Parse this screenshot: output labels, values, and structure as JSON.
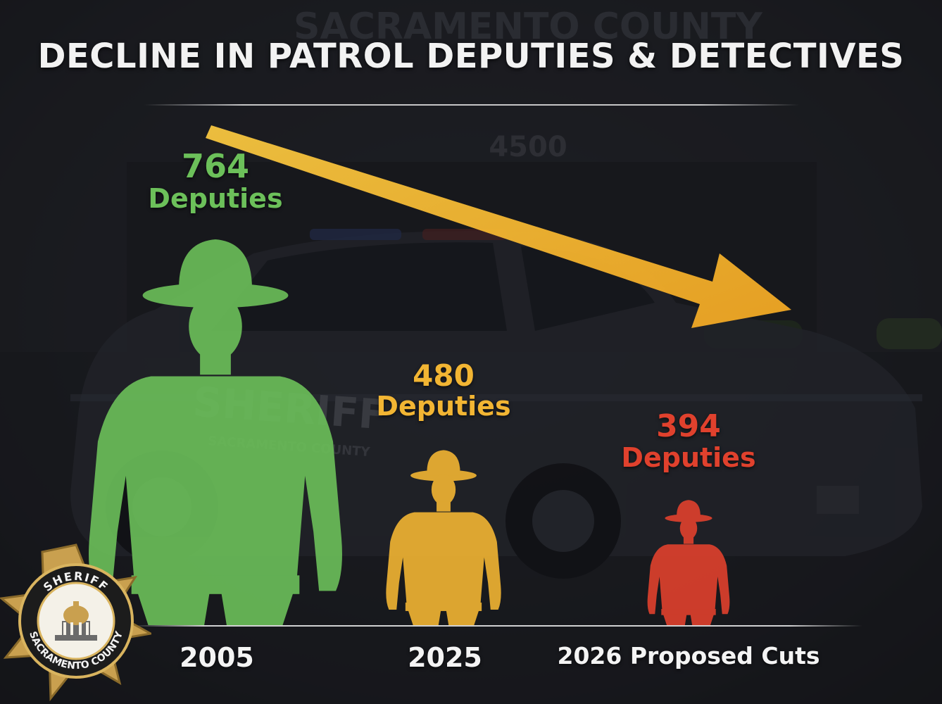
{
  "title": "DECLINE IN PATROL DEPUTIES & DETECTIVES",
  "chart_data": {
    "type": "bar",
    "title": "DECLINE IN PATROL DEPUTIES & DETECTIVES",
    "categories": [
      "2005",
      "2025",
      "2026 Proposed Cuts"
    ],
    "values": [
      764,
      480,
      394
    ],
    "value_unit": "Deputies",
    "value_labels": [
      {
        "number": "764",
        "unit": "Deputies"
      },
      {
        "number": "480",
        "unit": "Deputies"
      },
      {
        "number": "394",
        "unit": "Deputies"
      }
    ],
    "marks": "deputy silhouettes scaled by value",
    "trend": "downward arrow",
    "legend": "none",
    "grid": false
  },
  "colors": {
    "2005": "#6cc05a",
    "2025": "#f2b533",
    "2026": "#e0412d",
    "arrow": "#f3b12c",
    "text": "#f2f2f2"
  },
  "badge": {
    "icon": "sheriff-star-badge-icon",
    "top_text": "SHERIFF",
    "bottom_text": "SACRAMENTO COUNTY"
  },
  "background": {
    "building_sign": "SACRAMENTO COUNTY",
    "building_number": "4500",
    "car_door_text": "SHERIFF",
    "car_door_subtext": "SACRAMENTO COUNTY"
  }
}
